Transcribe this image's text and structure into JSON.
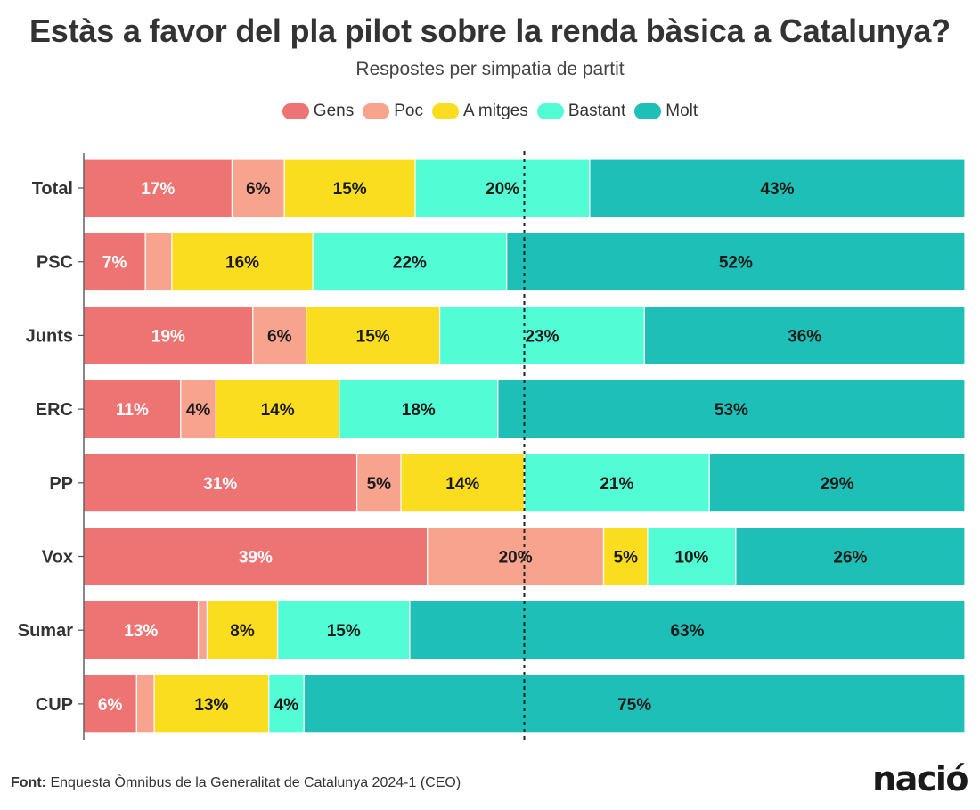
{
  "title": "Estàs a favor del pla pilot sobre la renda bàsica a Catalunya?",
  "subtitle": "Respostes per simpatia de partit",
  "footer": {
    "source_label": "Font:",
    "source_text": "Enquesta Òmnibus de la Generalitat de Catalunya 2024-1 (CEO)"
  },
  "logo": "nació",
  "chart_data": {
    "type": "bar",
    "orientation": "horizontal",
    "stacked": true,
    "normalized": true,
    "categories": [
      "Total",
      "PSC",
      "Junts",
      "ERC",
      "PP",
      "Vox",
      "Sumar",
      "CUP"
    ],
    "series": [
      {
        "name": "Gens",
        "color": "#ee7474",
        "values": [
          17,
          7,
          19,
          11,
          31,
          39,
          13,
          6
        ],
        "labels": [
          "17%",
          "7%",
          "19%",
          "11%",
          "31%",
          "39%",
          "13%",
          "6%"
        ]
      },
      {
        "name": "Poc",
        "color": "#f8a38d",
        "values": [
          6,
          3,
          6,
          4,
          5,
          20,
          1,
          2
        ],
        "labels": [
          "6%",
          "",
          "6%",
          "4%",
          "5%",
          "20%",
          "",
          ""
        ]
      },
      {
        "name": "A mitges",
        "color": "#fbdd20",
        "values": [
          15,
          16,
          15,
          14,
          14,
          5,
          8,
          13
        ],
        "labels": [
          "15%",
          "16%",
          "15%",
          "14%",
          "14%",
          "5%",
          "8%",
          "13%"
        ]
      },
      {
        "name": "Bastant",
        "color": "#52fcd4",
        "values": [
          20,
          22,
          23,
          18,
          21,
          10,
          15,
          4
        ],
        "labels": [
          "20%",
          "22%",
          "23%",
          "18%",
          "21%",
          "10%",
          "15%",
          "4%"
        ]
      },
      {
        "name": "Molt",
        "color": "#1dbfb7",
        "values": [
          43,
          52,
          36,
          53,
          29,
          26,
          63,
          75
        ],
        "labels": [
          "43%",
          "52%",
          "36%",
          "53%",
          "29%",
          "26%",
          "63%",
          "75%"
        ]
      }
    ],
    "reference_line": 50,
    "legend_position": "top-center",
    "grid": false
  }
}
